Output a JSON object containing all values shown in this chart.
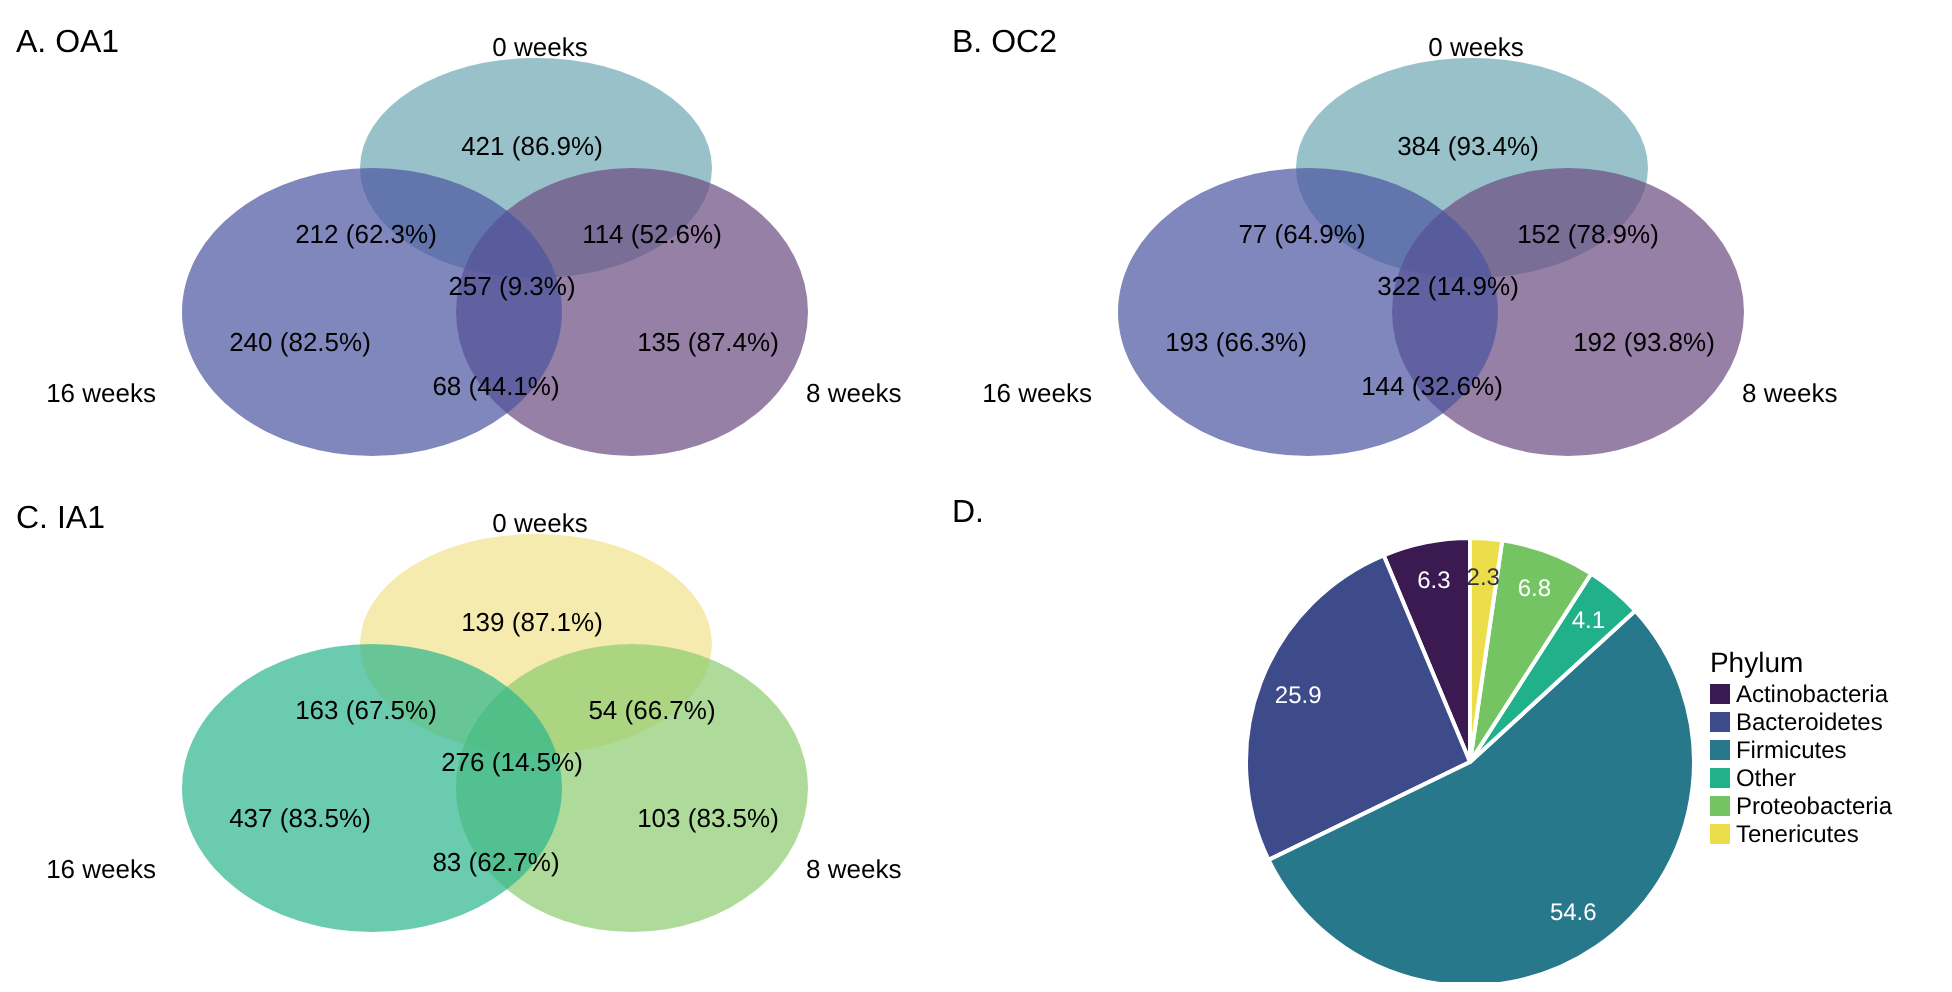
{
  "chart_data": [
    {
      "type": "other",
      "title": "A. OA1",
      "categories": [
        "0 weeks",
        "8 weeks",
        "16 weeks"
      ],
      "colors": [
        "#6ea6b3",
        "#6b4a80",
        "#4a54a0"
      ],
      "annotations": [
        "421 (86.9%)",
        "212 (62.3%)",
        "114 (52.6%)",
        "257 (9.3%)",
        "240 (82.5%)",
        "135 (87.4%)",
        "68 (44.1%)"
      ]
    },
    {
      "type": "other",
      "title": "B. OC2",
      "categories": [
        "0 weeks",
        "8 weeks",
        "16 weeks"
      ],
      "colors": [
        "#6ea6b3",
        "#6b4a80",
        "#4a54a0"
      ],
      "annotations": [
        "384 (93.4%)",
        "77 (64.9%)",
        "152 (78.9%)",
        "322 (14.9%)",
        "193 (66.3%)",
        "192 (93.8%)",
        "144 (32.6%)"
      ]
    },
    {
      "type": "other",
      "title": "C. IA1",
      "categories": [
        "0 weeks",
        "8 weeks",
        "16 weeks"
      ],
      "colors": [
        "#f2e38d",
        "#8ccc6e",
        "#2bb58c"
      ],
      "annotations": [
        "139 (87.1%)",
        "163 (67.5%)",
        "54 (66.7%)",
        "276 (14.5%)",
        "437 (83.5%)",
        "103 (83.5%)",
        "83 (62.7%)"
      ]
    },
    {
      "type": "pie",
      "title": "D.",
      "legend_title": "Phylum",
      "legend": "right",
      "data_labels": true,
      "categories": [
        "Actinobacteria",
        "Bacteroidetes",
        "Firmicutes",
        "Other",
        "Proteobacteria",
        "Tenericutes"
      ],
      "values": [
        6.3,
        25.9,
        54.6,
        4.1,
        6.8,
        2.3
      ],
      "colors": [
        "#3b1a52",
        "#3e4b8a",
        "#26788a",
        "#20b08a",
        "#74c464",
        "#ecde4a"
      ]
    }
  ]
}
